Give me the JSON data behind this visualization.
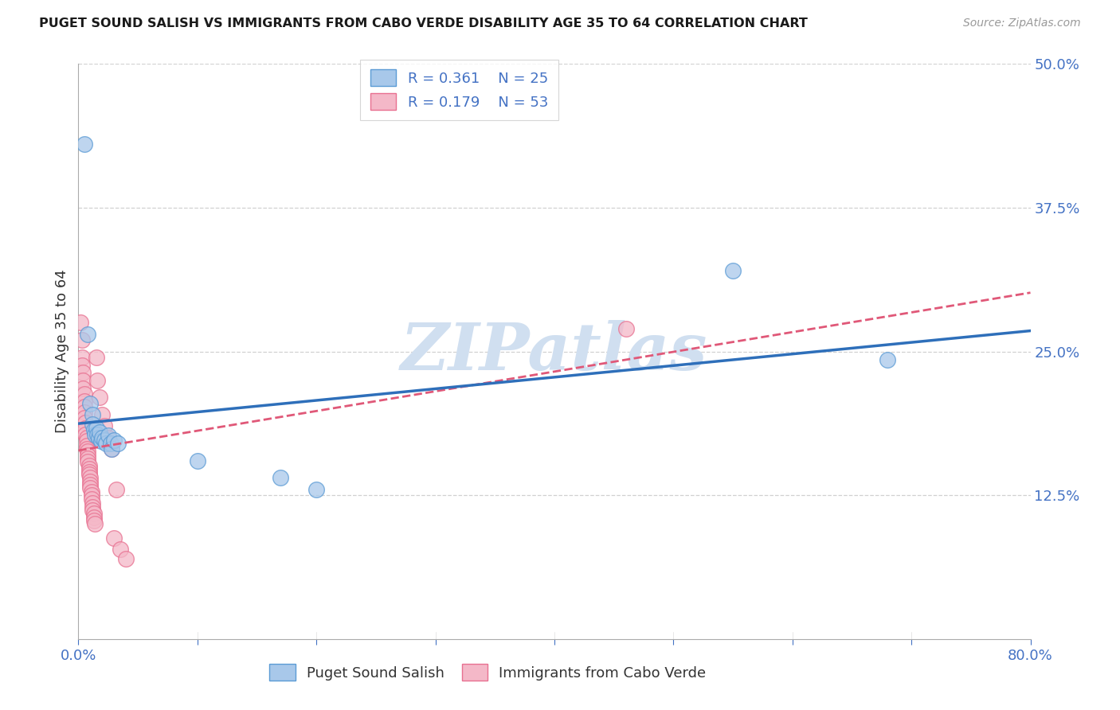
{
  "title": "PUGET SOUND SALISH VS IMMIGRANTS FROM CABO VERDE DISABILITY AGE 35 TO 64 CORRELATION CHART",
  "source": "Source: ZipAtlas.com",
  "ylabel": "Disability Age 35 to 64",
  "xlim": [
    0,
    0.8
  ],
  "ylim": [
    0,
    0.5
  ],
  "xticks": [
    0.0,
    0.1,
    0.2,
    0.3,
    0.4,
    0.5,
    0.6,
    0.7,
    0.8
  ],
  "yticks": [
    0.0,
    0.125,
    0.25,
    0.375,
    0.5
  ],
  "blue_R": 0.361,
  "blue_N": 25,
  "pink_R": 0.179,
  "pink_N": 53,
  "blue_scatter_color": "#a8c8ea",
  "blue_edge_color": "#5b9bd5",
  "pink_scatter_color": "#f4b8c8",
  "pink_edge_color": "#e87090",
  "blue_line_color": "#2e6fba",
  "pink_line_color": "#e05878",
  "tick_label_color": "#4472c4",
  "ylabel_color": "#333333",
  "background_color": "#ffffff",
  "grid_color": "#cccccc",
  "watermark_text": "ZIPatlas",
  "watermark_color": "#d0dff0",
  "blue_scatter": [
    [
      0.005,
      0.43
    ],
    [
      0.008,
      0.265
    ],
    [
      0.01,
      0.205
    ],
    [
      0.012,
      0.195
    ],
    [
      0.012,
      0.187
    ],
    [
      0.013,
      0.182
    ],
    [
      0.014,
      0.178
    ],
    [
      0.015,
      0.183
    ],
    [
      0.016,
      0.178
    ],
    [
      0.017,
      0.175
    ],
    [
      0.018,
      0.18
    ],
    [
      0.019,
      0.172
    ],
    [
      0.02,
      0.175
    ],
    [
      0.022,
      0.173
    ],
    [
      0.023,
      0.17
    ],
    [
      0.025,
      0.177
    ],
    [
      0.027,
      0.17
    ],
    [
      0.028,
      0.165
    ],
    [
      0.03,
      0.173
    ],
    [
      0.033,
      0.17
    ],
    [
      0.1,
      0.155
    ],
    [
      0.17,
      0.14
    ],
    [
      0.2,
      0.13
    ],
    [
      0.55,
      0.32
    ],
    [
      0.68,
      0.243
    ]
  ],
  "pink_scatter": [
    [
      0.002,
      0.275
    ],
    [
      0.003,
      0.26
    ],
    [
      0.003,
      0.245
    ],
    [
      0.003,
      0.238
    ],
    [
      0.004,
      0.232
    ],
    [
      0.004,
      0.225
    ],
    [
      0.004,
      0.218
    ],
    [
      0.005,
      0.213
    ],
    [
      0.005,
      0.207
    ],
    [
      0.005,
      0.202
    ],
    [
      0.005,
      0.197
    ],
    [
      0.005,
      0.192
    ],
    [
      0.006,
      0.188
    ],
    [
      0.006,
      0.183
    ],
    [
      0.006,
      0.178
    ],
    [
      0.007,
      0.175
    ],
    [
      0.007,
      0.172
    ],
    [
      0.007,
      0.168
    ],
    [
      0.007,
      0.165
    ],
    [
      0.008,
      0.163
    ],
    [
      0.008,
      0.16
    ],
    [
      0.008,
      0.157
    ],
    [
      0.008,
      0.154
    ],
    [
      0.009,
      0.151
    ],
    [
      0.009,
      0.148
    ],
    [
      0.009,
      0.145
    ],
    [
      0.009,
      0.143
    ],
    [
      0.01,
      0.14
    ],
    [
      0.01,
      0.137
    ],
    [
      0.01,
      0.134
    ],
    [
      0.01,
      0.131
    ],
    [
      0.011,
      0.128
    ],
    [
      0.011,
      0.125
    ],
    [
      0.011,
      0.122
    ],
    [
      0.012,
      0.118
    ],
    [
      0.012,
      0.115
    ],
    [
      0.012,
      0.112
    ],
    [
      0.013,
      0.109
    ],
    [
      0.013,
      0.106
    ],
    [
      0.013,
      0.103
    ],
    [
      0.014,
      0.1
    ],
    [
      0.015,
      0.245
    ],
    [
      0.016,
      0.225
    ],
    [
      0.018,
      0.21
    ],
    [
      0.02,
      0.195
    ],
    [
      0.022,
      0.185
    ],
    [
      0.025,
      0.175
    ],
    [
      0.028,
      0.165
    ],
    [
      0.03,
      0.088
    ],
    [
      0.032,
      0.13
    ],
    [
      0.035,
      0.078
    ],
    [
      0.04,
      0.07
    ],
    [
      0.46,
      0.27
    ]
  ],
  "legend_label_color": "#4472c4",
  "bottom_legend_color": "#333333"
}
